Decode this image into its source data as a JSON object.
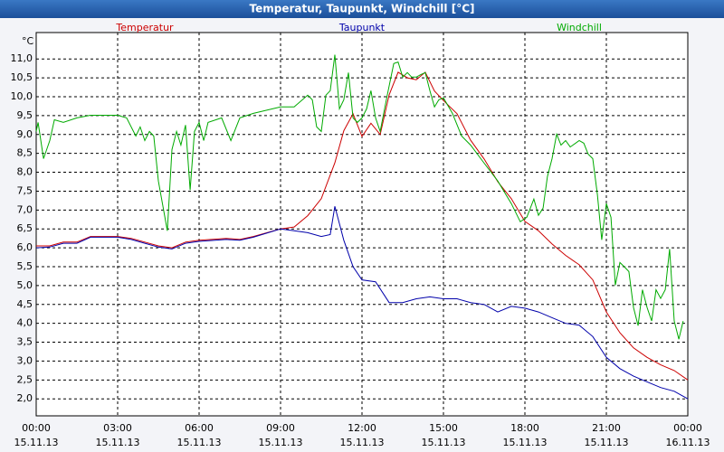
{
  "chart_data": {
    "type": "line",
    "title": "Temperatur, Taupunkt, Windchill [°C]",
    "ylabel": "°C",
    "grid": true,
    "xlim": [
      0,
      24
    ],
    "xticks": [
      {
        "value": 0,
        "label": "00:00",
        "sublabel": "15.11.13"
      },
      {
        "value": 3,
        "label": "03:00",
        "sublabel": "15.11.13"
      },
      {
        "value": 6,
        "label": "06:00",
        "sublabel": "15.11.13"
      },
      {
        "value": 9,
        "label": "09:00",
        "sublabel": "15.11.13"
      },
      {
        "value": 12,
        "label": "12:00",
        "sublabel": "15.11.13"
      },
      {
        "value": 15,
        "label": "15:00",
        "sublabel": "15.11.13"
      },
      {
        "value": 18,
        "label": "18:00",
        "sublabel": "15.11.13"
      },
      {
        "value": 21,
        "label": "21:00",
        "sublabel": "15.11.13"
      },
      {
        "value": 24,
        "label": "00:00",
        "sublabel": "16.11.13"
      }
    ],
    "ylim": [
      1.55,
      11.7
    ],
    "yticks": [
      {
        "value": 2,
        "label": "2,0"
      },
      {
        "value": 2.5,
        "label": "2,5"
      },
      {
        "value": 3,
        "label": "3,0"
      },
      {
        "value": 3.5,
        "label": "3,5"
      },
      {
        "value": 4,
        "label": "4,0"
      },
      {
        "value": 4.5,
        "label": "4,5"
      },
      {
        "value": 5,
        "label": "5,0"
      },
      {
        "value": 5.5,
        "label": "5,5"
      },
      {
        "value": 6,
        "label": "6,0"
      },
      {
        "value": 6.5,
        "label": "6,5"
      },
      {
        "value": 7,
        "label": "7,0"
      },
      {
        "value": 7.5,
        "label": "7,5"
      },
      {
        "value": 8,
        "label": "8,0"
      },
      {
        "value": 8.5,
        "label": "8,5"
      },
      {
        "value": 9,
        "label": "9,0"
      },
      {
        "value": 9.5,
        "label": "9,5"
      },
      {
        "value": 10,
        "label": "10,0"
      },
      {
        "value": 10.5,
        "label": "10,5"
      },
      {
        "value": 11,
        "label": "11,0"
      }
    ],
    "series": [
      {
        "name": "Temperatur",
        "color": "#cc0000",
        "x": [
          0,
          0.5,
          1,
          1.5,
          2,
          3,
          3.5,
          4,
          4.5,
          5,
          5.5,
          6,
          7,
          7.5,
          8,
          9,
          9.5,
          10,
          10.5,
          11,
          11.33,
          11.67,
          12,
          12.33,
          12.67,
          13,
          13.33,
          13.67,
          14,
          14.33,
          14.67,
          15,
          15.5,
          16,
          16.5,
          17,
          17.5,
          18,
          18.5,
          19,
          19.5,
          20,
          20.5,
          21,
          21.5,
          22,
          22.5,
          23,
          23.5,
          24
        ],
        "values": [
          6.05,
          6.05,
          6.15,
          6.15,
          6.3,
          6.3,
          6.25,
          6.15,
          6.05,
          6.0,
          6.15,
          6.2,
          6.25,
          6.22,
          6.3,
          6.5,
          6.55,
          6.85,
          7.3,
          8.25,
          9.1,
          9.55,
          8.95,
          9.3,
          9.0,
          10.05,
          10.65,
          10.5,
          10.45,
          10.65,
          10.15,
          9.9,
          9.55,
          8.85,
          8.35,
          7.75,
          7.3,
          6.7,
          6.45,
          6.1,
          5.8,
          5.55,
          5.15,
          4.3,
          3.75,
          3.35,
          3.1,
          2.9,
          2.75,
          2.5
        ]
      },
      {
        "name": "Taupunkt",
        "color": "#0000aa",
        "x": [
          0,
          0.5,
          1,
          1.5,
          2,
          3,
          3.5,
          4,
          4.5,
          5,
          5.5,
          6,
          7,
          7.5,
          8,
          9,
          9.5,
          10,
          10.5,
          10.83,
          11,
          11.33,
          11.67,
          12,
          12.5,
          13,
          13.5,
          14,
          14.5,
          15,
          15.5,
          16,
          16.5,
          17,
          17.5,
          18,
          18.5,
          19,
          19.5,
          20,
          20.5,
          21,
          21.5,
          22,
          22.5,
          23,
          23.5,
          24
        ],
        "values": [
          6.0,
          6.02,
          6.12,
          6.12,
          6.28,
          6.28,
          6.22,
          6.12,
          6.02,
          5.97,
          6.12,
          6.17,
          6.22,
          6.2,
          6.28,
          6.5,
          6.45,
          6.4,
          6.3,
          6.35,
          7.1,
          6.2,
          5.5,
          5.15,
          5.1,
          4.55,
          4.55,
          4.65,
          4.7,
          4.65,
          4.65,
          4.55,
          4.5,
          4.3,
          4.45,
          4.4,
          4.3,
          4.15,
          4.0,
          3.95,
          3.65,
          3.1,
          2.8,
          2.6,
          2.45,
          2.3,
          2.2,
          2.0
        ]
      },
      {
        "name": "Windchill",
        "color": "#00aa00",
        "x": [
          0,
          0.07,
          0.27,
          0.5,
          0.67,
          1.0,
          1.5,
          2.0,
          3.0,
          3.33,
          3.67,
          3.83,
          4.0,
          4.17,
          4.33,
          4.5,
          4.83,
          5.0,
          5.17,
          5.33,
          5.5,
          5.67,
          5.83,
          6.0,
          6.17,
          6.33,
          6.83,
          7.17,
          7.5,
          8.0,
          9.0,
          9.5,
          10.0,
          10.17,
          10.33,
          10.5,
          10.67,
          10.83,
          11.0,
          11.17,
          11.33,
          11.5,
          11.67,
          11.83,
          12.0,
          12.17,
          12.33,
          12.5,
          12.67,
          12.93,
          13.17,
          13.33,
          13.5,
          13.67,
          13.83,
          14.0,
          14.17,
          14.33,
          14.5,
          14.67,
          14.83,
          15.0,
          15.33,
          15.67,
          16.0,
          16.5,
          17.0,
          17.5,
          17.83,
          18.07,
          18.33,
          18.5,
          18.67,
          18.83,
          19.0,
          19.17,
          19.33,
          19.5,
          19.67,
          20.0,
          20.17,
          20.33,
          20.5,
          20.67,
          20.83,
          21.0,
          21.17,
          21.33,
          21.5,
          21.67,
          21.83,
          22.0,
          22.17,
          22.33,
          22.5,
          22.67,
          22.83,
          23.0,
          23.17,
          23.33,
          23.5,
          23.67,
          23.83
        ],
        "values": [
          9.08,
          9.32,
          8.36,
          8.84,
          9.39,
          9.32,
          9.44,
          9.51,
          9.51,
          9.44,
          8.96,
          9.2,
          8.84,
          9.08,
          8.96,
          7.77,
          6.45,
          8.6,
          9.08,
          8.72,
          9.25,
          7.53,
          9.08,
          9.32,
          8.84,
          9.32,
          9.44,
          8.84,
          9.44,
          9.56,
          9.73,
          9.73,
          10.04,
          9.92,
          9.2,
          9.08,
          10.04,
          10.16,
          11.11,
          9.68,
          9.92,
          10.64,
          9.44,
          9.32,
          9.44,
          9.68,
          10.16,
          9.44,
          9.08,
          10.04,
          10.88,
          10.92,
          10.52,
          10.64,
          10.52,
          10.52,
          10.59,
          10.64,
          10.16,
          9.73,
          9.92,
          9.97,
          9.56,
          8.96,
          8.72,
          8.24,
          7.77,
          7.17,
          6.69,
          6.81,
          7.29,
          6.86,
          7.05,
          7.89,
          8.36,
          9.01,
          8.72,
          8.84,
          8.67,
          8.84,
          8.77,
          8.48,
          8.36,
          7.41,
          6.21,
          7.17,
          6.81,
          5.01,
          5.61,
          5.49,
          5.37,
          4.42,
          3.94,
          4.89,
          4.42,
          4.06,
          4.89,
          4.66,
          4.89,
          5.97,
          4.06,
          3.58,
          4.06
        ]
      }
    ]
  }
}
